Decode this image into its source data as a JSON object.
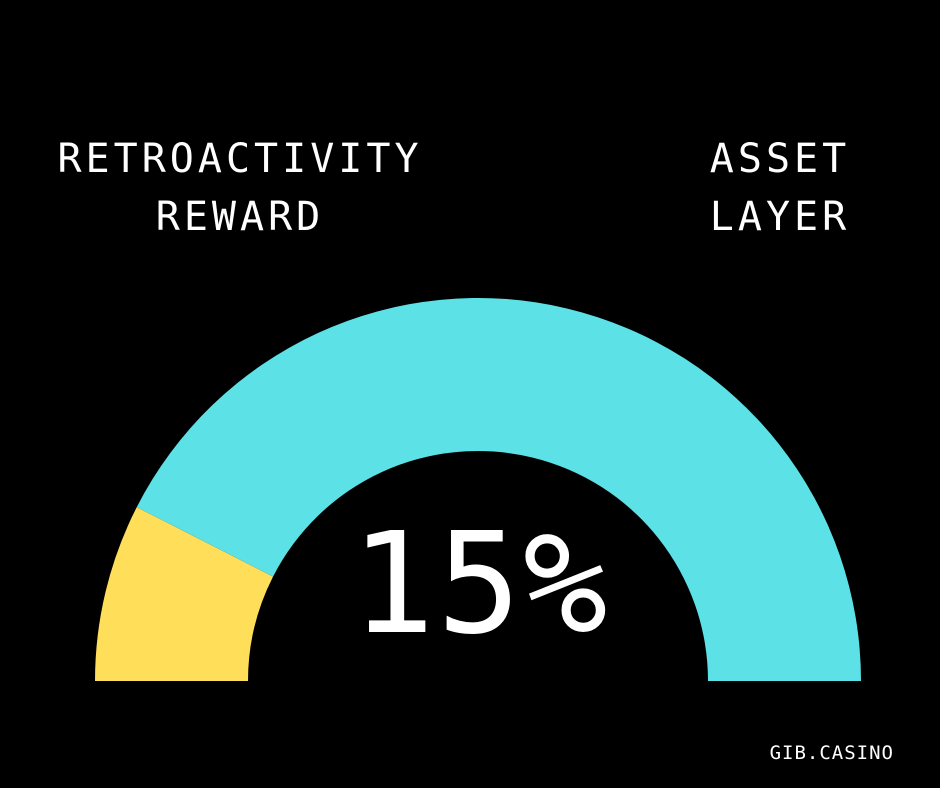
{
  "labels": {
    "left_line1": "RETROACTIVITY",
    "left_line2": "REWARD",
    "right_line1": "ASSET",
    "right_line2": "LAYER"
  },
  "center_text": "15%",
  "brand": "GIB.CASINO",
  "colors": {
    "background": "#000000",
    "primary": "#FFDE59",
    "secondary": "#5CE1E6",
    "text": "#FFFFFF"
  },
  "chart_data": {
    "type": "pie",
    "style": "semicircle-gauge",
    "slices": [
      {
        "label": "RETROACTIVITY REWARD",
        "value": 15,
        "color": "#FFDE59"
      },
      {
        "label": "ASSET LAYER",
        "value": 85,
        "color": "#5CE1E6"
      }
    ],
    "total": 100
  }
}
